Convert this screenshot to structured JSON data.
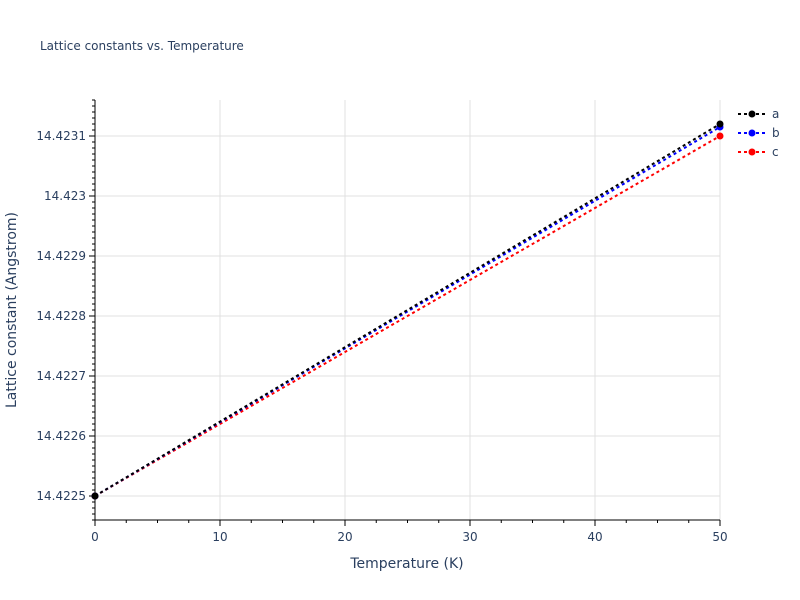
{
  "chart_data": {
    "type": "line",
    "title": "Lattice constants vs. Temperature",
    "xlabel": "Temperature (K)",
    "ylabel": "Lattice constant (Angstrom)",
    "xlim": [
      0,
      50
    ],
    "ylim": [
      14.42246,
      14.42316
    ],
    "x_ticks": [
      0,
      10,
      20,
      30,
      40,
      50
    ],
    "y_ticks": [
      14.4225,
      14.4226,
      14.4227,
      14.4228,
      14.4229,
      14.423,
      14.4231
    ],
    "x_tick_labels": [
      "0",
      "10",
      "20",
      "30",
      "40",
      "50"
    ],
    "y_tick_labels": [
      "14.4225",
      "14.4226",
      "14.4227",
      "14.4228",
      "14.4229",
      "14.423",
      "14.4231"
    ],
    "grid": true,
    "legend_position": "top-right",
    "x": [
      0,
      50
    ],
    "series": [
      {
        "name": "a",
        "color": "#000000",
        "values": [
          14.4225,
          14.42312
        ]
      },
      {
        "name": "b",
        "color": "#0000ff",
        "values": [
          14.4225,
          14.423115
        ]
      },
      {
        "name": "c",
        "color": "#ff0000",
        "values": [
          14.4225,
          14.4231
        ]
      }
    ]
  }
}
